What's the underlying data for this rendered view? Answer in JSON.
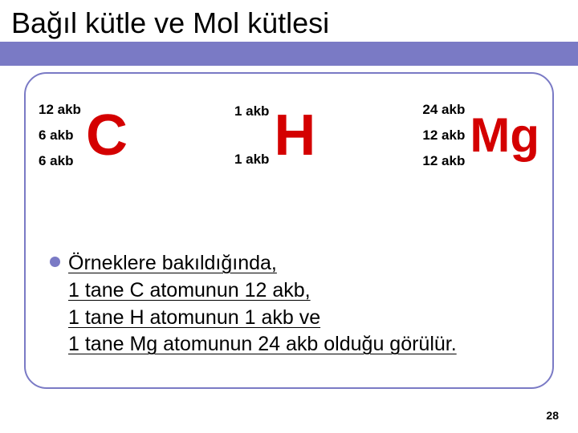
{
  "slide": {
    "title": "Bağıl kütle ve Mol kütlesi",
    "title_color": "#000000",
    "header_band_color": "#7a7ac5",
    "box_border_color": "#7a7ac5",
    "page_number": "28"
  },
  "atoms": [
    {
      "symbol": "C",
      "symbol_color": "#d40000",
      "symbol_fontsize": 72,
      "labels": [
        "12 akb",
        "6 akb",
        "6 akb"
      ],
      "label_fontsize": 17
    },
    {
      "symbol": "H",
      "symbol_color": "#d40000",
      "symbol_fontsize": 72,
      "labels": [
        "1 akb",
        "1 akb"
      ],
      "label_fontsize": 17,
      "label_gap": 40
    },
    {
      "symbol": "Mg",
      "symbol_color": "#d40000",
      "symbol_fontsize": 60,
      "labels": [
        "24 akb",
        "12 akb",
        "12 akb"
      ],
      "label_fontsize": 17
    }
  ],
  "bullet": {
    "dot_color": "#7a7ac5",
    "lines": [
      "Örneklere bakıldığında,",
      "1 tane C atomunun 12 akb,",
      "1 tane H atomunun 1 akb ve",
      "1 tane Mg atomunun 24 akb olduğu görülür."
    ]
  }
}
